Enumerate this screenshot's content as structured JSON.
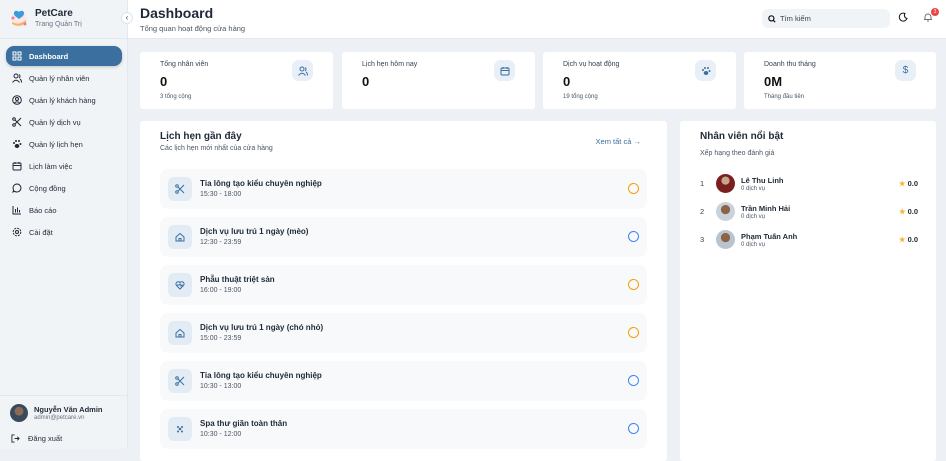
{
  "sidebar": {
    "brand": "PetCare",
    "subtitle": "Trang Quản Trị",
    "items": [
      {
        "label": "Dashboard",
        "icon": "dashboard-icon"
      },
      {
        "label": "Quản lý nhân viên",
        "icon": "users-icon"
      },
      {
        "label": "Quản lý khách hàng",
        "icon": "user-circle-icon"
      },
      {
        "label": "Quản lý dịch vụ",
        "icon": "scissors-icon"
      },
      {
        "label": "Quản lý lịch hẹn",
        "icon": "paw-icon"
      },
      {
        "label": "Lịch làm việc",
        "icon": "calendar-icon"
      },
      {
        "label": "Cộng đồng",
        "icon": "chat-icon"
      },
      {
        "label": "Báo cáo",
        "icon": "chart-icon"
      },
      {
        "label": "Cài đặt",
        "icon": "gear-icon"
      }
    ],
    "user": {
      "name": "Nguyễn Văn Admin",
      "email": "admin@petcare.vn"
    },
    "logout": "Đăng xuất"
  },
  "header": {
    "title": "Dashboard",
    "subtitle": "Tổng quan hoạt động cửa hàng",
    "search_placeholder": "Tìm kiếm",
    "notification_count": "3"
  },
  "stats": [
    {
      "label": "Tổng nhân viên",
      "value": "0",
      "footer": "3 tổng cộng",
      "icon": "users-icon"
    },
    {
      "label": "Lịch hẹn hôm nay",
      "value": "0",
      "footer": "",
      "icon": "calendar-icon"
    },
    {
      "label": "Dịch vụ hoạt động",
      "value": "0",
      "footer": "19 tổng cộng",
      "icon": "paw-icon"
    },
    {
      "label": "Doanh thu tháng",
      "value": "0M",
      "footer": "Tháng đầu tiên",
      "icon": "dollar-icon"
    }
  ],
  "appointments": {
    "title": "Lịch hẹn gần đây",
    "subtitle": "Các lịch hẹn mới nhất của cửa hàng",
    "see_all": "Xem tất cả",
    "items": [
      {
        "name": "Tỉa lông tạo kiểu chuyên nghiệp",
        "time": "15:30 - 18:00",
        "icon": "scissors-icon",
        "status_color": "#f59e0b"
      },
      {
        "name": "Dịch vụ lưu trú 1 ngày (mèo)",
        "time": "12:30 - 23:59",
        "icon": "home-icon",
        "status_color": "#3b82f6"
      },
      {
        "name": "Phẫu thuật triệt sản",
        "time": "16:00 - 19:00",
        "icon": "heart-pulse-icon",
        "status_color": "#f59e0b"
      },
      {
        "name": "Dịch vụ lưu trú 1 ngày (chó nhỏ)",
        "time": "15:00 - 23:59",
        "icon": "home-icon",
        "status_color": "#f59e0b"
      },
      {
        "name": "Tỉa lông tạo kiểu chuyên nghiệp",
        "time": "10:30 - 13:00",
        "icon": "scissors-icon",
        "status_color": "#3b82f6"
      },
      {
        "name": "Spa thư giãn toàn thân",
        "time": "10:30 - 12:00",
        "icon": "sparkle-icon",
        "status_color": "#3b82f6"
      }
    ]
  },
  "top_staff": {
    "title": "Nhân viên nổi bật",
    "subtitle": "Xếp hạng theo đánh giá",
    "items": [
      {
        "rank": "1",
        "name": "Lê Thu Linh",
        "count": "0 dịch vụ",
        "rating": "0.0"
      },
      {
        "rank": "2",
        "name": "Trần Minh Hải",
        "count": "0 dịch vụ",
        "rating": "0.0"
      },
      {
        "rank": "3",
        "name": "Phạm Tuấn Anh",
        "count": "0 dịch vụ",
        "rating": "0.0"
      }
    ]
  }
}
